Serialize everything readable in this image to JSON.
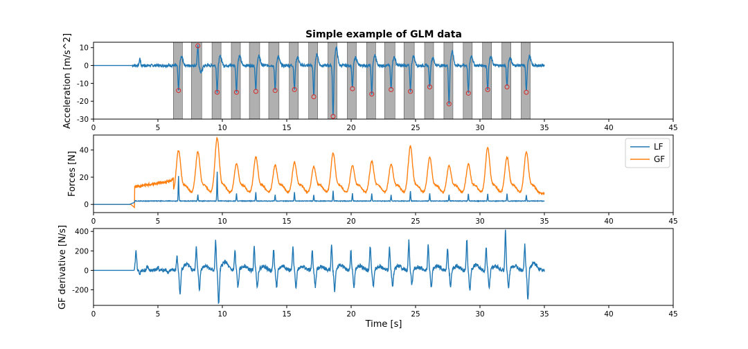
{
  "chart_data": [
    {
      "type": "line",
      "title": "Simple example of GLM data",
      "xlabel": "",
      "ylabel": "Acceleration [m/s^2]",
      "xlim": [
        0,
        45
      ],
      "ylim": [
        -30,
        13
      ],
      "xticks": [
        0,
        5,
        10,
        15,
        20,
        25,
        30,
        35,
        40,
        45
      ],
      "yticks": [
        10,
        0,
        -10,
        -20,
        -30
      ],
      "colors": {
        "line": "#1f77b4",
        "marker": "#d62728",
        "band": "#b0b0b0"
      },
      "shaded_intervals": [
        [
          6.2,
          6.9
        ],
        [
          7.6,
          8.4
        ],
        [
          9.2,
          9.9
        ],
        [
          10.7,
          11.4
        ],
        [
          12.1,
          12.9
        ],
        [
          13.6,
          14.4
        ],
        [
          15.2,
          15.9
        ],
        [
          16.7,
          17.4
        ],
        [
          18.2,
          18.9
        ],
        [
          19.7,
          20.4
        ],
        [
          21.2,
          21.9
        ],
        [
          22.6,
          23.4
        ],
        [
          24.1,
          24.9
        ],
        [
          25.7,
          26.4
        ],
        [
          27.2,
          27.9
        ],
        [
          28.7,
          29.4
        ],
        [
          30.2,
          30.9
        ],
        [
          31.7,
          32.4
        ],
        [
          33.2,
          33.9
        ]
      ],
      "series": [
        {
          "name": "",
          "spikes": [
            {
              "x": 3.6,
              "y": 4
            },
            {
              "x": 6.6,
              "y": -14
            },
            {
              "x": 8.1,
              "y": 11
            },
            {
              "x": 9.6,
              "y": -15
            },
            {
              "x": 11.1,
              "y": -15
            },
            {
              "x": 12.6,
              "y": -14.5
            },
            {
              "x": 14.1,
              "y": -14
            },
            {
              "x": 15.6,
              "y": -13.5
            },
            {
              "x": 17.1,
              "y": -17.5
            },
            {
              "x": 18.6,
              "y": -28.5
            },
            {
              "x": 20.1,
              "y": -13
            },
            {
              "x": 21.6,
              "y": -16
            },
            {
              "x": 23.1,
              "y": -13.5
            },
            {
              "x": 24.6,
              "y": -14.5
            },
            {
              "x": 26.1,
              "y": -12
            },
            {
              "x": 27.6,
              "y": -21.5
            },
            {
              "x": 29.1,
              "y": -15.5
            },
            {
              "x": 30.6,
              "y": -13.5
            },
            {
              "x": 32.1,
              "y": -12
            },
            {
              "x": 33.6,
              "y": -15
            }
          ],
          "end_x": 35
        }
      ],
      "markers": [
        {
          "x": 6.6,
          "y": -14
        },
        {
          "x": 8.1,
          "y": 11
        },
        {
          "x": 9.6,
          "y": -15
        },
        {
          "x": 11.1,
          "y": -15
        },
        {
          "x": 12.6,
          "y": -14.5
        },
        {
          "x": 14.1,
          "y": -14
        },
        {
          "x": 15.6,
          "y": -13.5
        },
        {
          "x": 17.1,
          "y": -17.5
        },
        {
          "x": 18.6,
          "y": -28.5
        },
        {
          "x": 20.1,
          "y": -13
        },
        {
          "x": 21.6,
          "y": -16
        },
        {
          "x": 23.1,
          "y": -13.5
        },
        {
          "x": 24.6,
          "y": -14.5
        },
        {
          "x": 26.1,
          "y": -12
        },
        {
          "x": 27.6,
          "y": -21.5
        },
        {
          "x": 29.1,
          "y": -15.5
        },
        {
          "x": 30.6,
          "y": -13.5
        },
        {
          "x": 32.1,
          "y": -12
        },
        {
          "x": 33.6,
          "y": -15
        }
      ]
    },
    {
      "type": "line",
      "title": "",
      "xlabel": "",
      "ylabel": "Forces [N]",
      "xlim": [
        0,
        45
      ],
      "ylim": [
        -6,
        51
      ],
      "xticks": [
        0,
        5,
        10,
        15,
        20,
        25,
        30,
        35,
        40,
        45
      ],
      "yticks": [
        40,
        20,
        0
      ],
      "legend": "top-right",
      "series": [
        {
          "name": "LF",
          "color": "#1f77b4",
          "baseline": 2.5,
          "peaks": [
            [
              6.6,
              21
            ],
            [
              8.1,
              7
            ],
            [
              9.6,
              24
            ],
            [
              11.1,
              8
            ],
            [
              12.6,
              9
            ],
            [
              14.1,
              7
            ],
            [
              15.6,
              9
            ],
            [
              17.1,
              7
            ],
            [
              18.6,
              10
            ],
            [
              20.1,
              8
            ],
            [
              21.6,
              8
            ],
            [
              23.1,
              7
            ],
            [
              24.6,
              10
            ],
            [
              26.1,
              8
            ],
            [
              27.6,
              7
            ],
            [
              29.1,
              8
            ],
            [
              30.6,
              8
            ],
            [
              32.1,
              8
            ],
            [
              33.6,
              7
            ]
          ],
          "end_x": 35
        },
        {
          "name": "GF",
          "color": "#ff7f0e",
          "baseline": 8,
          "peaks": [
            [
              6.6,
              39
            ],
            [
              8.1,
              38
            ],
            [
              9.6,
              48
            ],
            [
              11.1,
              29
            ],
            [
              12.6,
              34
            ],
            [
              14.1,
              28
            ],
            [
              15.6,
              30
            ],
            [
              17.1,
              27
            ],
            [
              18.6,
              37
            ],
            [
              20.1,
              28
            ],
            [
              21.6,
              31
            ],
            [
              23.1,
              29
            ],
            [
              24.6,
              42
            ],
            [
              26.1,
              34
            ],
            [
              27.6,
              28
            ],
            [
              29.1,
              29
            ],
            [
              30.6,
              41
            ],
            [
              32.1,
              34
            ],
            [
              33.6,
              38
            ]
          ],
          "end_x": 35
        }
      ]
    },
    {
      "type": "line",
      "title": "",
      "xlabel": "Time [s]",
      "ylabel": "GF derivative [N/s]",
      "xlim": [
        0,
        45
      ],
      "ylim": [
        -360,
        430
      ],
      "xticks": [
        0,
        5,
        10,
        15,
        20,
        25,
        30,
        35,
        40,
        45
      ],
      "yticks": [
        400,
        200,
        0,
        -200
      ],
      "series": [
        {
          "name": "",
          "color": "#1f77b4",
          "cycles": [
            [
              6.6,
              140,
              -250
            ],
            [
              8.1,
              250,
              -200
            ],
            [
              9.6,
              300,
              -350
            ],
            [
              11.1,
              200,
              -180
            ],
            [
              12.6,
              240,
              -170
            ],
            [
              14.1,
              220,
              -180
            ],
            [
              15.6,
              230,
              -170
            ],
            [
              17.1,
              200,
              -170
            ],
            [
              18.6,
              260,
              -210
            ],
            [
              20.1,
              200,
              -180
            ],
            [
              21.6,
              250,
              -160
            ],
            [
              23.1,
              240,
              -180
            ],
            [
              24.6,
              300,
              -150
            ],
            [
              26.1,
              260,
              -180
            ],
            [
              27.6,
              230,
              -170
            ],
            [
              29.1,
              320,
              -220
            ],
            [
              30.6,
              230,
              -180
            ],
            [
              32.1,
              400,
              -200
            ],
            [
              33.6,
              260,
              -300
            ]
          ],
          "onset": [
            [
              3.3,
              200
            ],
            [
              3.6,
              -40
            ],
            [
              4.2,
              50
            ],
            [
              5.0,
              40
            ],
            [
              5.8,
              -20
            ]
          ],
          "end_x": 35
        }
      ]
    }
  ]
}
